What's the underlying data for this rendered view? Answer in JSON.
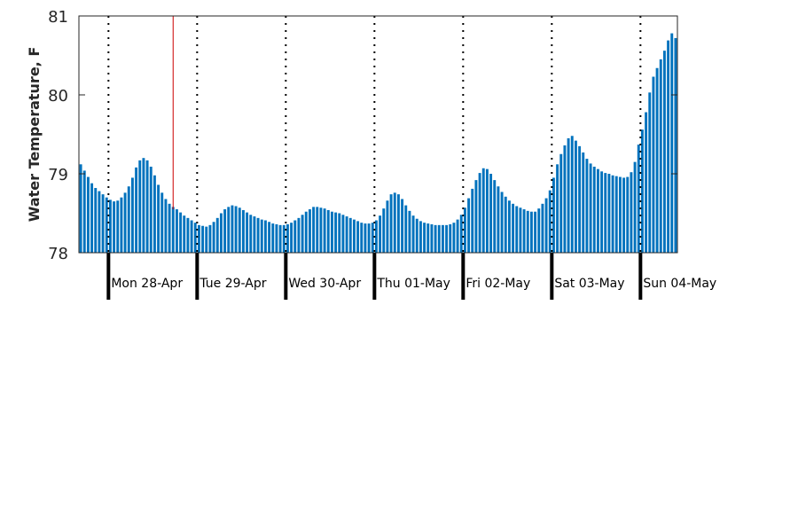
{
  "chart_data": {
    "type": "bar",
    "title": "",
    "ylabel": "Water Temperature, F",
    "xlabel": "",
    "ylim": [
      78,
      81
    ],
    "yticks": [
      "78",
      "79",
      "80",
      "81"
    ],
    "grid": false,
    "bar_color": "#0072bd",
    "marker_color": "#cc0000",
    "day_labels": [
      "Mon 28-Apr",
      "Tue 29-Apr",
      "Wed 30-Apr",
      "Thu 01-May",
      "Fri 02-May",
      "Sat 03-May",
      "Sun 04-May"
    ],
    "marker_index": 26,
    "values": [
      79.12,
      79.04,
      78.96,
      78.88,
      78.82,
      78.78,
      78.74,
      78.7,
      78.67,
      78.65,
      78.66,
      78.7,
      78.76,
      78.84,
      78.95,
      79.08,
      79.17,
      79.2,
      79.17,
      79.09,
      78.98,
      78.86,
      78.76,
      78.68,
      78.62,
      78.58,
      78.55,
      78.51,
      78.47,
      78.44,
      78.41,
      78.38,
      78.35,
      78.34,
      78.33,
      78.35,
      78.39,
      78.44,
      78.5,
      78.55,
      78.58,
      78.6,
      78.59,
      78.57,
      78.54,
      78.51,
      78.48,
      78.46,
      78.44,
      78.42,
      78.41,
      78.39,
      78.37,
      78.36,
      78.35,
      78.35,
      78.36,
      78.38,
      78.41,
      78.44,
      78.48,
      78.52,
      78.55,
      78.58,
      78.58,
      78.57,
      78.56,
      78.54,
      78.52,
      78.51,
      78.5,
      78.48,
      78.46,
      78.44,
      78.42,
      78.4,
      78.38,
      78.37,
      78.37,
      78.38,
      78.41,
      78.47,
      78.56,
      78.66,
      78.74,
      78.76,
      78.74,
      78.68,
      78.6,
      78.53,
      78.47,
      78.43,
      78.4,
      78.38,
      78.37,
      78.36,
      78.35,
      78.35,
      78.35,
      78.35,
      78.36,
      78.38,
      78.42,
      78.48,
      78.57,
      78.69,
      78.81,
      78.92,
      79.01,
      79.07,
      79.06,
      79.0,
      78.92,
      78.84,
      78.77,
      78.71,
      78.66,
      78.62,
      78.59,
      78.57,
      78.55,
      78.53,
      78.52,
      78.52,
      78.56,
      78.62,
      78.69,
      78.79,
      78.95,
      79.12,
      79.25,
      79.36,
      79.45,
      79.48,
      79.42,
      79.35,
      79.27,
      79.19,
      79.13,
      79.09,
      79.06,
      79.03,
      79.01,
      79.0,
      78.98,
      78.97,
      78.96,
      78.95,
      78.96,
      79.02,
      79.15,
      79.37,
      79.56,
      79.78,
      80.03,
      80.23,
      80.34,
      80.45,
      80.56,
      80.69,
      80.78,
      80.72
    ]
  }
}
